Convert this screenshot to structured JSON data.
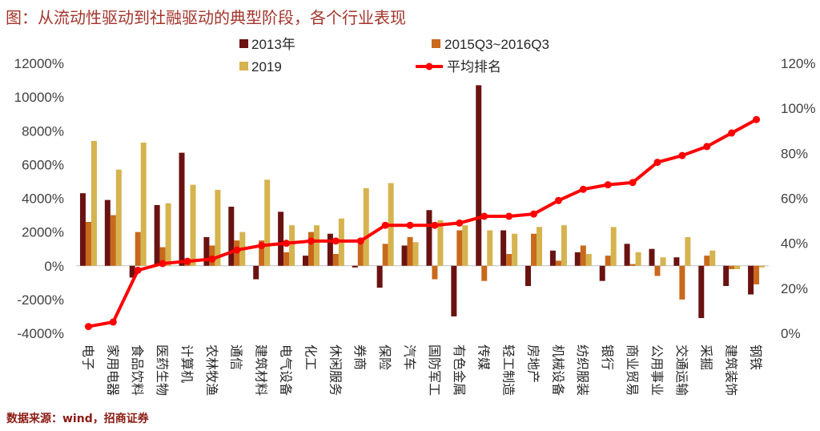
{
  "chart_data": {
    "type": "bar",
    "title": "图：从流动性驱动到社融驱动的典型阶段，各个行业表现",
    "categories": [
      "电子",
      "家用电器",
      "食品饮料",
      "医药生物",
      "计算机",
      "农林牧渔",
      "通信",
      "建筑材料",
      "电气设备",
      "化工",
      "休闲服务",
      "券商",
      "保险",
      "汽车",
      "国防军工",
      "有色金属",
      "传媒",
      "轻工制造",
      "房地产",
      "机械设备",
      "纺织服装",
      "银行",
      "商业贸易",
      "公用事业",
      "交通运输",
      "采掘",
      "建筑装饰",
      "钢铁"
    ],
    "series": [
      {
        "name": "2013年",
        "type": "bar",
        "axis": "left",
        "color": "#6a1212",
        "values": [
          4300,
          3900,
          -700,
          3600,
          6700,
          1700,
          3500,
          -800,
          3200,
          600,
          1900,
          -100,
          -1300,
          1200,
          3300,
          -3000,
          10700,
          2100,
          -1200,
          900,
          800,
          -900,
          1300,
          1000,
          500,
          -3100,
          -1200,
          -1700
        ]
      },
      {
        "name": "2015Q3~2016Q3",
        "type": "bar",
        "axis": "left",
        "color": "#c8691c",
        "values": [
          2600,
          3000,
          2000,
          1100,
          400,
          1200,
          1500,
          1500,
          800,
          2000,
          700,
          1600,
          1300,
          1700,
          -800,
          2100,
          -900,
          700,
          1900,
          300,
          1200,
          600,
          100,
          -600,
          -2000,
          600,
          -200,
          -1100
        ]
      },
      {
        "name": "2019",
        "type": "bar",
        "axis": "left",
        "color": "#d5b34f",
        "values": [
          7400,
          5700,
          7300,
          3700,
          4800,
          4500,
          2000,
          5100,
          2400,
          2400,
          2800,
          4600,
          4900,
          1400,
          2700,
          2400,
          2100,
          1900,
          2300,
          2400,
          700,
          2300,
          800,
          500,
          1700,
          900,
          -200,
          -100
        ]
      },
      {
        "name": "平均排名",
        "type": "line",
        "axis": "right",
        "color": "#ff0000",
        "values": [
          3,
          5,
          28,
          31,
          32,
          33,
          37,
          39,
          40,
          41,
          41,
          41,
          48,
          48,
          48,
          49,
          52,
          52,
          53,
          59,
          64,
          66,
          67,
          76,
          79,
          83,
          89,
          95
        ]
      }
    ],
    "ylim": [
      -4000,
      12000
    ],
    "y2lim": [
      0,
      120
    ],
    "yticks_left": [
      {
        "value": 12000,
        "label": "12000%"
      },
      {
        "value": 10000,
        "label": "10000%"
      },
      {
        "value": 8000,
        "label": "8000%"
      },
      {
        "value": 6000,
        "label": "6000%"
      },
      {
        "value": 4000,
        "label": "4000%"
      },
      {
        "value": 2000,
        "label": "2000%"
      },
      {
        "value": 0,
        "label": "0%"
      },
      {
        "value": -2000,
        "label": "-2000%"
      },
      {
        "value": -4000,
        "label": "-4000%"
      }
    ],
    "yticks_right": [
      {
        "value": 120,
        "label": "120%"
      },
      {
        "value": 100,
        "label": "100%"
      },
      {
        "value": 80,
        "label": "80%"
      },
      {
        "value": 60,
        "label": "60%"
      },
      {
        "value": 40,
        "label": "40%"
      },
      {
        "value": 20,
        "label": "20%"
      },
      {
        "value": 0,
        "label": "0%"
      }
    ],
    "legend": {
      "position": "top"
    },
    "grid": false
  },
  "footer": {
    "source": "数据来源：wind，招商证券"
  }
}
